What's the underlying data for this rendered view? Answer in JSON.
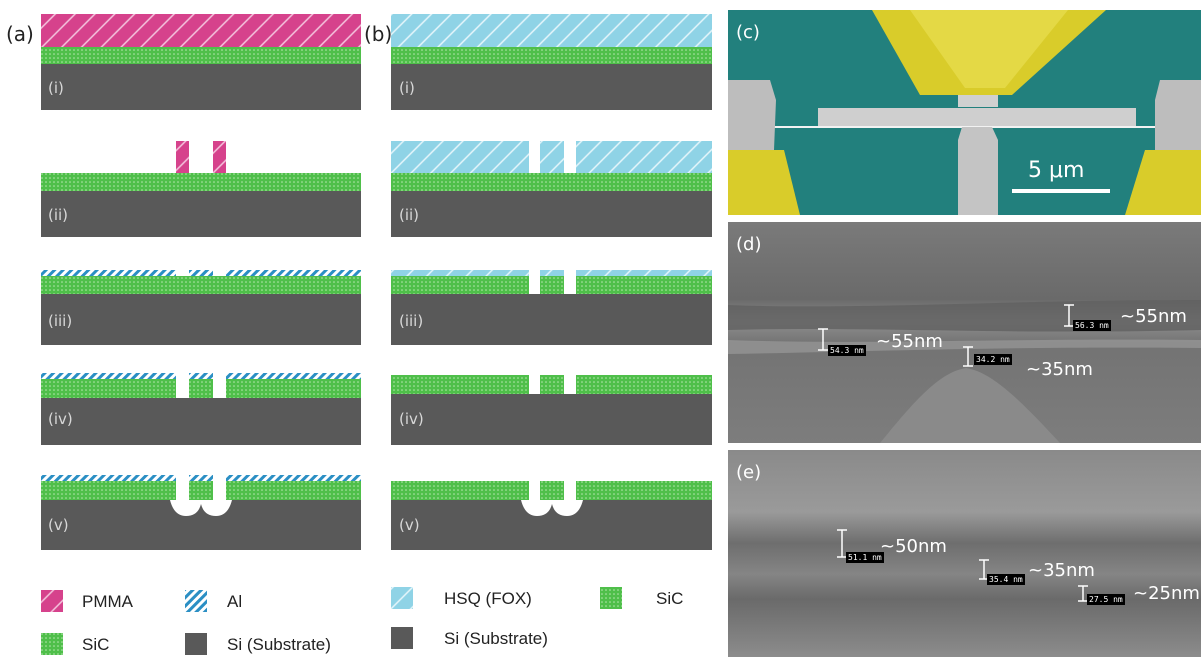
{
  "panel_labels": {
    "a": "(a)",
    "b": "(b)",
    "c": "(c)",
    "d": "(d)",
    "e": "(e)"
  },
  "steps": [
    "(i)",
    "(ii)",
    "(iii)",
    "(iv)",
    "(v)"
  ],
  "legend": {
    "pmma": "PMMA",
    "al": "Al",
    "sic": "SiC",
    "si": "Si (Substrate)",
    "hsq": "HSQ (FOX)",
    "sic_b": "SiC",
    "si_b": "Si (Substrate)"
  },
  "colors": {
    "pmma": "#d6428c",
    "al": "#3aa7d6",
    "hsq": "#8fd3e6",
    "sic": "#4fbf4a",
    "si": "#595959",
    "sem_teal": "#1f7d7a",
    "sem_gold": "#d9cc2a"
  },
  "sem_c": {
    "scale_bar": "5 μm"
  },
  "sem_d": {
    "m1_box": "54.3 nm",
    "m1_text": "~55nm",
    "m2_box": "34.2 nm",
    "m2_text": "~35nm",
    "m3_box": "56.3 nm",
    "m3_text": "~55nm"
  },
  "sem_e": {
    "m1_box": "51.1 nm",
    "m1_text": "~50nm",
    "m2_box": "35.4 nm",
    "m2_text": "~35nm",
    "m3_box": "27.5 nm",
    "m3_text": "~25nm"
  }
}
